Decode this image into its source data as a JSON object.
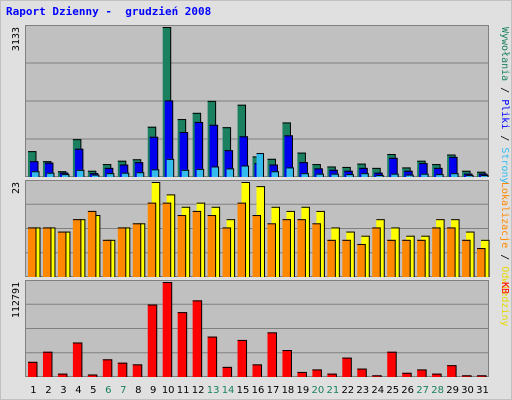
{
  "title": "Raport Dzienny -  grudzień 2008",
  "chart_data": [
    {
      "type": "bar",
      "panel": "top",
      "ymax_label": "3133",
      "ylim": [
        0,
        3133
      ],
      "categories": [
        "1",
        "2",
        "3",
        "4",
        "5",
        "6",
        "7",
        "8",
        "9",
        "10",
        "11",
        "12",
        "13",
        "14",
        "15",
        "16",
        "17",
        "18",
        "19",
        "20",
        "21",
        "22",
        "23",
        "24",
        "25",
        "26",
        "27",
        "28",
        "29",
        "30",
        "31"
      ],
      "weekend_categories": [
        "6",
        "7",
        "13",
        "14",
        "20",
        "21",
        "27",
        "28"
      ],
      "series": [
        {
          "name": "Wywołania",
          "color": "#1a8060",
          "values": [
            540,
            330,
            120,
            790,
            130,
            270,
            340,
            370,
            1050,
            3133,
            1210,
            1340,
            1590,
            1040,
            1510,
            430,
            380,
            1140,
            510,
            270,
            220,
            210,
            280,
            190,
            480,
            200,
            340,
            270,
            470,
            130,
            110
          ]
        },
        {
          "name": "Pliki",
          "color": "#0000ee",
          "values": [
            330,
            300,
            90,
            590,
            80,
            190,
            260,
            310,
            840,
            1600,
            940,
            1150,
            1090,
            560,
            850,
            290,
            260,
            870,
            310,
            180,
            150,
            130,
            190,
            90,
            400,
            130,
            290,
            190,
            420,
            70,
            70
          ]
        },
        {
          "name": "Strony",
          "color": "#33bbee",
          "values": [
            120,
            90,
            60,
            150,
            50,
            80,
            90,
            100,
            160,
            380,
            150,
            170,
            220,
            180,
            240,
            500,
            120,
            200,
            80,
            70,
            70,
            60,
            80,
            40,
            70,
            50,
            70,
            60,
            80,
            40,
            40
          ]
        }
      ]
    },
    {
      "type": "bar",
      "panel": "middle",
      "ymax_label": "23",
      "ylim": [
        0,
        23
      ],
      "categories": [
        "1",
        "2",
        "3",
        "4",
        "5",
        "6",
        "7",
        "8",
        "9",
        "10",
        "11",
        "12",
        "13",
        "14",
        "15",
        "16",
        "17",
        "18",
        "19",
        "20",
        "21",
        "22",
        "23",
        "24",
        "25",
        "26",
        "27",
        "28",
        "29",
        "30",
        "31"
      ],
      "series": [
        {
          "name": "Odwiedziny",
          "color": "#ffff00",
          "values": [
            12,
            12,
            11,
            14,
            15,
            9,
            12,
            13,
            23,
            20,
            17,
            18,
            17,
            14,
            23,
            22,
            17,
            16,
            17,
            16,
            12,
            11,
            10,
            14,
            12,
            10,
            10,
            14,
            14,
            11,
            9
          ]
        },
        {
          "name": "Lokalizacje",
          "color": "#ff8800",
          "values": [
            12,
            12,
            11,
            14,
            16,
            9,
            12,
            13,
            18,
            18,
            15,
            16,
            15,
            12,
            18,
            15,
            13,
            14,
            14,
            13,
            9,
            9,
            8,
            12,
            9,
            9,
            9,
            12,
            12,
            9,
            7
          ]
        }
      ]
    },
    {
      "type": "bar",
      "panel": "bottom",
      "ymax_label": "112791",
      "ylim": [
        0,
        112791
      ],
      "categories": [
        "1",
        "2",
        "3",
        "4",
        "5",
        "6",
        "7",
        "8",
        "9",
        "10",
        "11",
        "12",
        "13",
        "14",
        "15",
        "16",
        "17",
        "18",
        "19",
        "20",
        "21",
        "22",
        "23",
        "24",
        "25",
        "26",
        "27",
        "28",
        "29",
        "30",
        "31"
      ],
      "series": [
        {
          "name": "KB",
          "color": "#ff0000",
          "values": [
            18000,
            30000,
            4000,
            41000,
            3000,
            21000,
            17000,
            15000,
            86000,
            112791,
            77000,
            91000,
            48000,
            12000,
            44000,
            15000,
            53000,
            32000,
            6000,
            9000,
            4000,
            23000,
            10000,
            2000,
            30000,
            5000,
            9000,
            4000,
            14000,
            2000,
            2000
          ]
        }
      ]
    }
  ],
  "right_labels": {
    "top": [
      {
        "text": "Wywołania",
        "color": "#1a8060"
      },
      {
        "text": " / ",
        "color": "#000000"
      },
      {
        "text": "Pliki",
        "color": "#0000ff"
      },
      {
        "text": " / ",
        "color": "#000000"
      },
      {
        "text": "Strony",
        "color": "#33bbee"
      }
    ],
    "middle": [
      {
        "text": "Lokalizacje",
        "color": "#ff8800"
      },
      {
        "text": " / ",
        "color": "#000000"
      },
      {
        "text": "Odwiedziny",
        "color": "#e6d800"
      }
    ],
    "bottom": [
      {
        "text": "KB",
        "color": "#ff0000"
      }
    ]
  },
  "colors": {
    "plot_bg": "#c0c0c0",
    "frame_bg": "#e0e0e0",
    "weekday_tick": "#000000",
    "weekend_tick": "#1a8060"
  }
}
